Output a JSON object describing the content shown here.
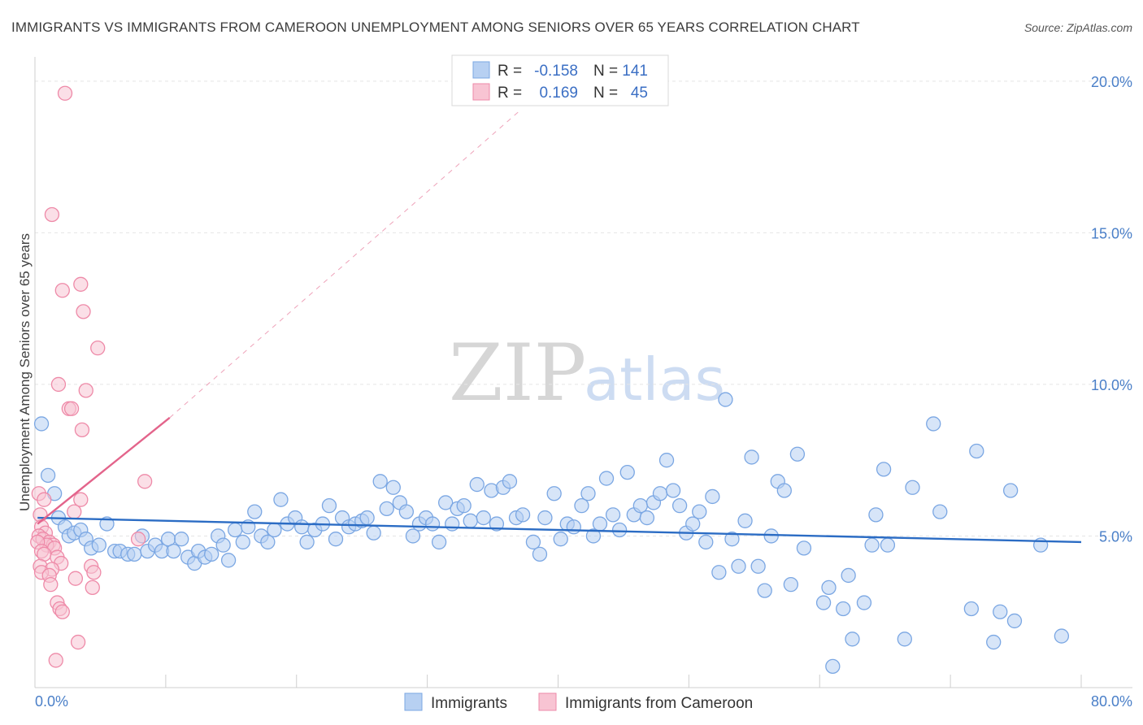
{
  "chart_data": {
    "type": "scatter",
    "title": "IMMIGRANTS VS IMMIGRANTS FROM CAMEROON UNEMPLOYMENT AMONG SENIORS OVER 65 YEARS CORRELATION CHART",
    "source": "Source: ZipAtlas.com",
    "ylabel": "Unemployment Among Seniors over 65 years",
    "xlim": [
      0,
      80
    ],
    "ylim": [
      0,
      20.8
    ],
    "x_tick_labels": [
      "0.0%",
      "80.0%"
    ],
    "y_ticks": [
      5,
      10,
      15,
      20
    ],
    "y_tick_labels": [
      "5.0%",
      "10.0%",
      "15.0%",
      "20.0%"
    ],
    "watermark": {
      "zip": "ZIP",
      "atlas": "atlas"
    },
    "legend": {
      "r_label": "R =",
      "n_label": "N =",
      "items": [
        {
          "r": "-0.158",
          "n": "141"
        },
        {
          "r": "0.169",
          "n": "45"
        }
      ]
    },
    "colors": {
      "blue_fill": "#b7d0f2",
      "blue_edge": "#7ba7e3",
      "blue_line": "#2b6cc4",
      "pink_fill": "#f8c4d3",
      "pink_edge": "#ee8aa8",
      "pink_line": "#e3648b",
      "grid": "#e5e5e5",
      "tick_text": "#4a7fc8"
    },
    "series": [
      {
        "name": "Immigrants",
        "trend": {
          "x0": 0.2,
          "y0": 5.6,
          "x1": 80,
          "y1": 4.8
        },
        "points": [
          [
            0.5,
            8.7
          ],
          [
            1.0,
            7.0
          ],
          [
            1.5,
            6.4
          ],
          [
            1.8,
            5.6
          ],
          [
            2.3,
            5.3
          ],
          [
            2.6,
            5.0
          ],
          [
            3.0,
            5.1
          ],
          [
            3.5,
            5.2
          ],
          [
            3.9,
            4.9
          ],
          [
            4.3,
            4.6
          ],
          [
            4.9,
            4.7
          ],
          [
            5.5,
            5.4
          ],
          [
            6.1,
            4.5
          ],
          [
            6.5,
            4.5
          ],
          [
            7.1,
            4.4
          ],
          [
            7.6,
            4.4
          ],
          [
            8.2,
            5.0
          ],
          [
            8.6,
            4.5
          ],
          [
            9.2,
            4.7
          ],
          [
            9.7,
            4.5
          ],
          [
            10.2,
            4.9
          ],
          [
            10.6,
            4.5
          ],
          [
            11.2,
            4.9
          ],
          [
            11.7,
            4.3
          ],
          [
            12.2,
            4.1
          ],
          [
            12.5,
            4.5
          ],
          [
            13.0,
            4.3
          ],
          [
            13.5,
            4.4
          ],
          [
            14.0,
            5.0
          ],
          [
            14.4,
            4.7
          ],
          [
            14.8,
            4.2
          ],
          [
            15.3,
            5.2
          ],
          [
            15.9,
            4.8
          ],
          [
            16.3,
            5.3
          ],
          [
            16.8,
            5.8
          ],
          [
            17.3,
            5.0
          ],
          [
            17.8,
            4.8
          ],
          [
            18.3,
            5.2
          ],
          [
            18.8,
            6.2
          ],
          [
            19.3,
            5.4
          ],
          [
            19.9,
            5.6
          ],
          [
            20.4,
            5.3
          ],
          [
            20.8,
            4.8
          ],
          [
            21.4,
            5.2
          ],
          [
            22.0,
            5.4
          ],
          [
            22.5,
            6.0
          ],
          [
            23.0,
            4.9
          ],
          [
            23.5,
            5.6
          ],
          [
            24.0,
            5.3
          ],
          [
            24.5,
            5.4
          ],
          [
            25.0,
            5.5
          ],
          [
            25.4,
            5.6
          ],
          [
            25.9,
            5.1
          ],
          [
            26.4,
            6.8
          ],
          [
            26.9,
            5.9
          ],
          [
            27.4,
            6.6
          ],
          [
            27.9,
            6.1
          ],
          [
            28.4,
            5.8
          ],
          [
            28.9,
            5.0
          ],
          [
            29.4,
            5.4
          ],
          [
            29.9,
            5.6
          ],
          [
            30.4,
            5.4
          ],
          [
            30.9,
            4.8
          ],
          [
            31.4,
            6.1
          ],
          [
            31.9,
            5.4
          ],
          [
            32.3,
            5.9
          ],
          [
            32.8,
            6.0
          ],
          [
            33.3,
            5.5
          ],
          [
            33.8,
            6.7
          ],
          [
            34.3,
            5.6
          ],
          [
            34.9,
            6.5
          ],
          [
            35.3,
            5.4
          ],
          [
            35.8,
            6.6
          ],
          [
            36.3,
            6.8
          ],
          [
            36.8,
            5.6
          ],
          [
            37.3,
            5.7
          ],
          [
            38.1,
            4.8
          ],
          [
            38.6,
            4.4
          ],
          [
            39.0,
            5.6
          ],
          [
            39.7,
            6.4
          ],
          [
            40.2,
            4.9
          ],
          [
            40.7,
            5.4
          ],
          [
            41.2,
            5.3
          ],
          [
            41.8,
            6.0
          ],
          [
            42.3,
            6.4
          ],
          [
            42.7,
            5.0
          ],
          [
            43.2,
            5.4
          ],
          [
            43.7,
            6.9
          ],
          [
            44.2,
            5.7
          ],
          [
            44.7,
            5.2
          ],
          [
            45.3,
            7.1
          ],
          [
            45.8,
            5.7
          ],
          [
            46.3,
            6.0
          ],
          [
            46.8,
            5.6
          ],
          [
            47.3,
            6.1
          ],
          [
            47.8,
            6.4
          ],
          [
            48.3,
            7.5
          ],
          [
            48.8,
            6.5
          ],
          [
            49.3,
            6.0
          ],
          [
            49.8,
            5.1
          ],
          [
            50.3,
            5.4
          ],
          [
            50.8,
            5.8
          ],
          [
            51.3,
            4.8
          ],
          [
            51.8,
            6.3
          ],
          [
            52.3,
            3.8
          ],
          [
            52.8,
            9.5
          ],
          [
            53.3,
            4.9
          ],
          [
            53.8,
            4.0
          ],
          [
            54.3,
            5.5
          ],
          [
            54.8,
            7.6
          ],
          [
            55.3,
            4.0
          ],
          [
            55.8,
            3.2
          ],
          [
            56.3,
            5.0
          ],
          [
            56.8,
            6.8
          ],
          [
            57.3,
            6.5
          ],
          [
            57.8,
            3.4
          ],
          [
            58.3,
            7.7
          ],
          [
            58.8,
            4.6
          ],
          [
            60.3,
            2.8
          ],
          [
            60.7,
            3.3
          ],
          [
            61.0,
            0.7
          ],
          [
            61.8,
            2.6
          ],
          [
            62.2,
            3.7
          ],
          [
            62.5,
            1.6
          ],
          [
            63.4,
            2.8
          ],
          [
            64.0,
            4.7
          ],
          [
            64.3,
            5.7
          ],
          [
            64.9,
            7.2
          ],
          [
            65.2,
            4.7
          ],
          [
            66.5,
            1.6
          ],
          [
            67.1,
            6.6
          ],
          [
            68.7,
            8.7
          ],
          [
            69.2,
            5.8
          ],
          [
            71.6,
            2.6
          ],
          [
            72.0,
            7.8
          ],
          [
            73.3,
            1.5
          ],
          [
            73.8,
            2.5
          ],
          [
            74.6,
            6.5
          ],
          [
            74.9,
            2.2
          ],
          [
            76.9,
            4.7
          ],
          [
            78.5,
            1.7
          ]
        ]
      },
      {
        "name": "Immigrants from Cameroon",
        "trend": {
          "x0": 0.2,
          "y0": 5.4,
          "x1": 10.3,
          "y1": 8.9
        },
        "trend_ext": {
          "x0": 10.3,
          "y0": 8.9,
          "x1": 37,
          "y1": 19.0
        },
        "points": [
          [
            2.3,
            19.6
          ],
          [
            1.3,
            15.6
          ],
          [
            3.5,
            13.3
          ],
          [
            2.1,
            13.1
          ],
          [
            3.7,
            12.4
          ],
          [
            4.8,
            11.2
          ],
          [
            1.8,
            10.0
          ],
          [
            3.9,
            9.8
          ],
          [
            2.6,
            9.2
          ],
          [
            2.8,
            9.2
          ],
          [
            3.6,
            8.5
          ],
          [
            8.4,
            6.8
          ],
          [
            0.3,
            6.4
          ],
          [
            0.7,
            6.2
          ],
          [
            3.5,
            6.2
          ],
          [
            3.0,
            5.8
          ],
          [
            0.4,
            5.7
          ],
          [
            0.5,
            5.3
          ],
          [
            0.8,
            5.1
          ],
          [
            0.3,
            5.0
          ],
          [
            0.6,
            4.9
          ],
          [
            1.1,
            4.8
          ],
          [
            1.4,
            4.7
          ],
          [
            0.9,
            4.7
          ],
          [
            0.2,
            4.8
          ],
          [
            1.5,
            4.6
          ],
          [
            7.9,
            4.9
          ],
          [
            0.5,
            4.5
          ],
          [
            0.7,
            4.4
          ],
          [
            1.7,
            4.3
          ],
          [
            0.4,
            4.0
          ],
          [
            2.0,
            4.1
          ],
          [
            4.3,
            4.0
          ],
          [
            1.3,
            3.9
          ],
          [
            0.5,
            3.8
          ],
          [
            4.5,
            3.8
          ],
          [
            1.1,
            3.7
          ],
          [
            3.1,
            3.6
          ],
          [
            1.2,
            3.4
          ],
          [
            4.4,
            3.3
          ],
          [
            1.7,
            2.8
          ],
          [
            1.9,
            2.6
          ],
          [
            2.1,
            2.5
          ],
          [
            3.3,
            1.5
          ],
          [
            1.6,
            0.9
          ]
        ]
      }
    ]
  }
}
